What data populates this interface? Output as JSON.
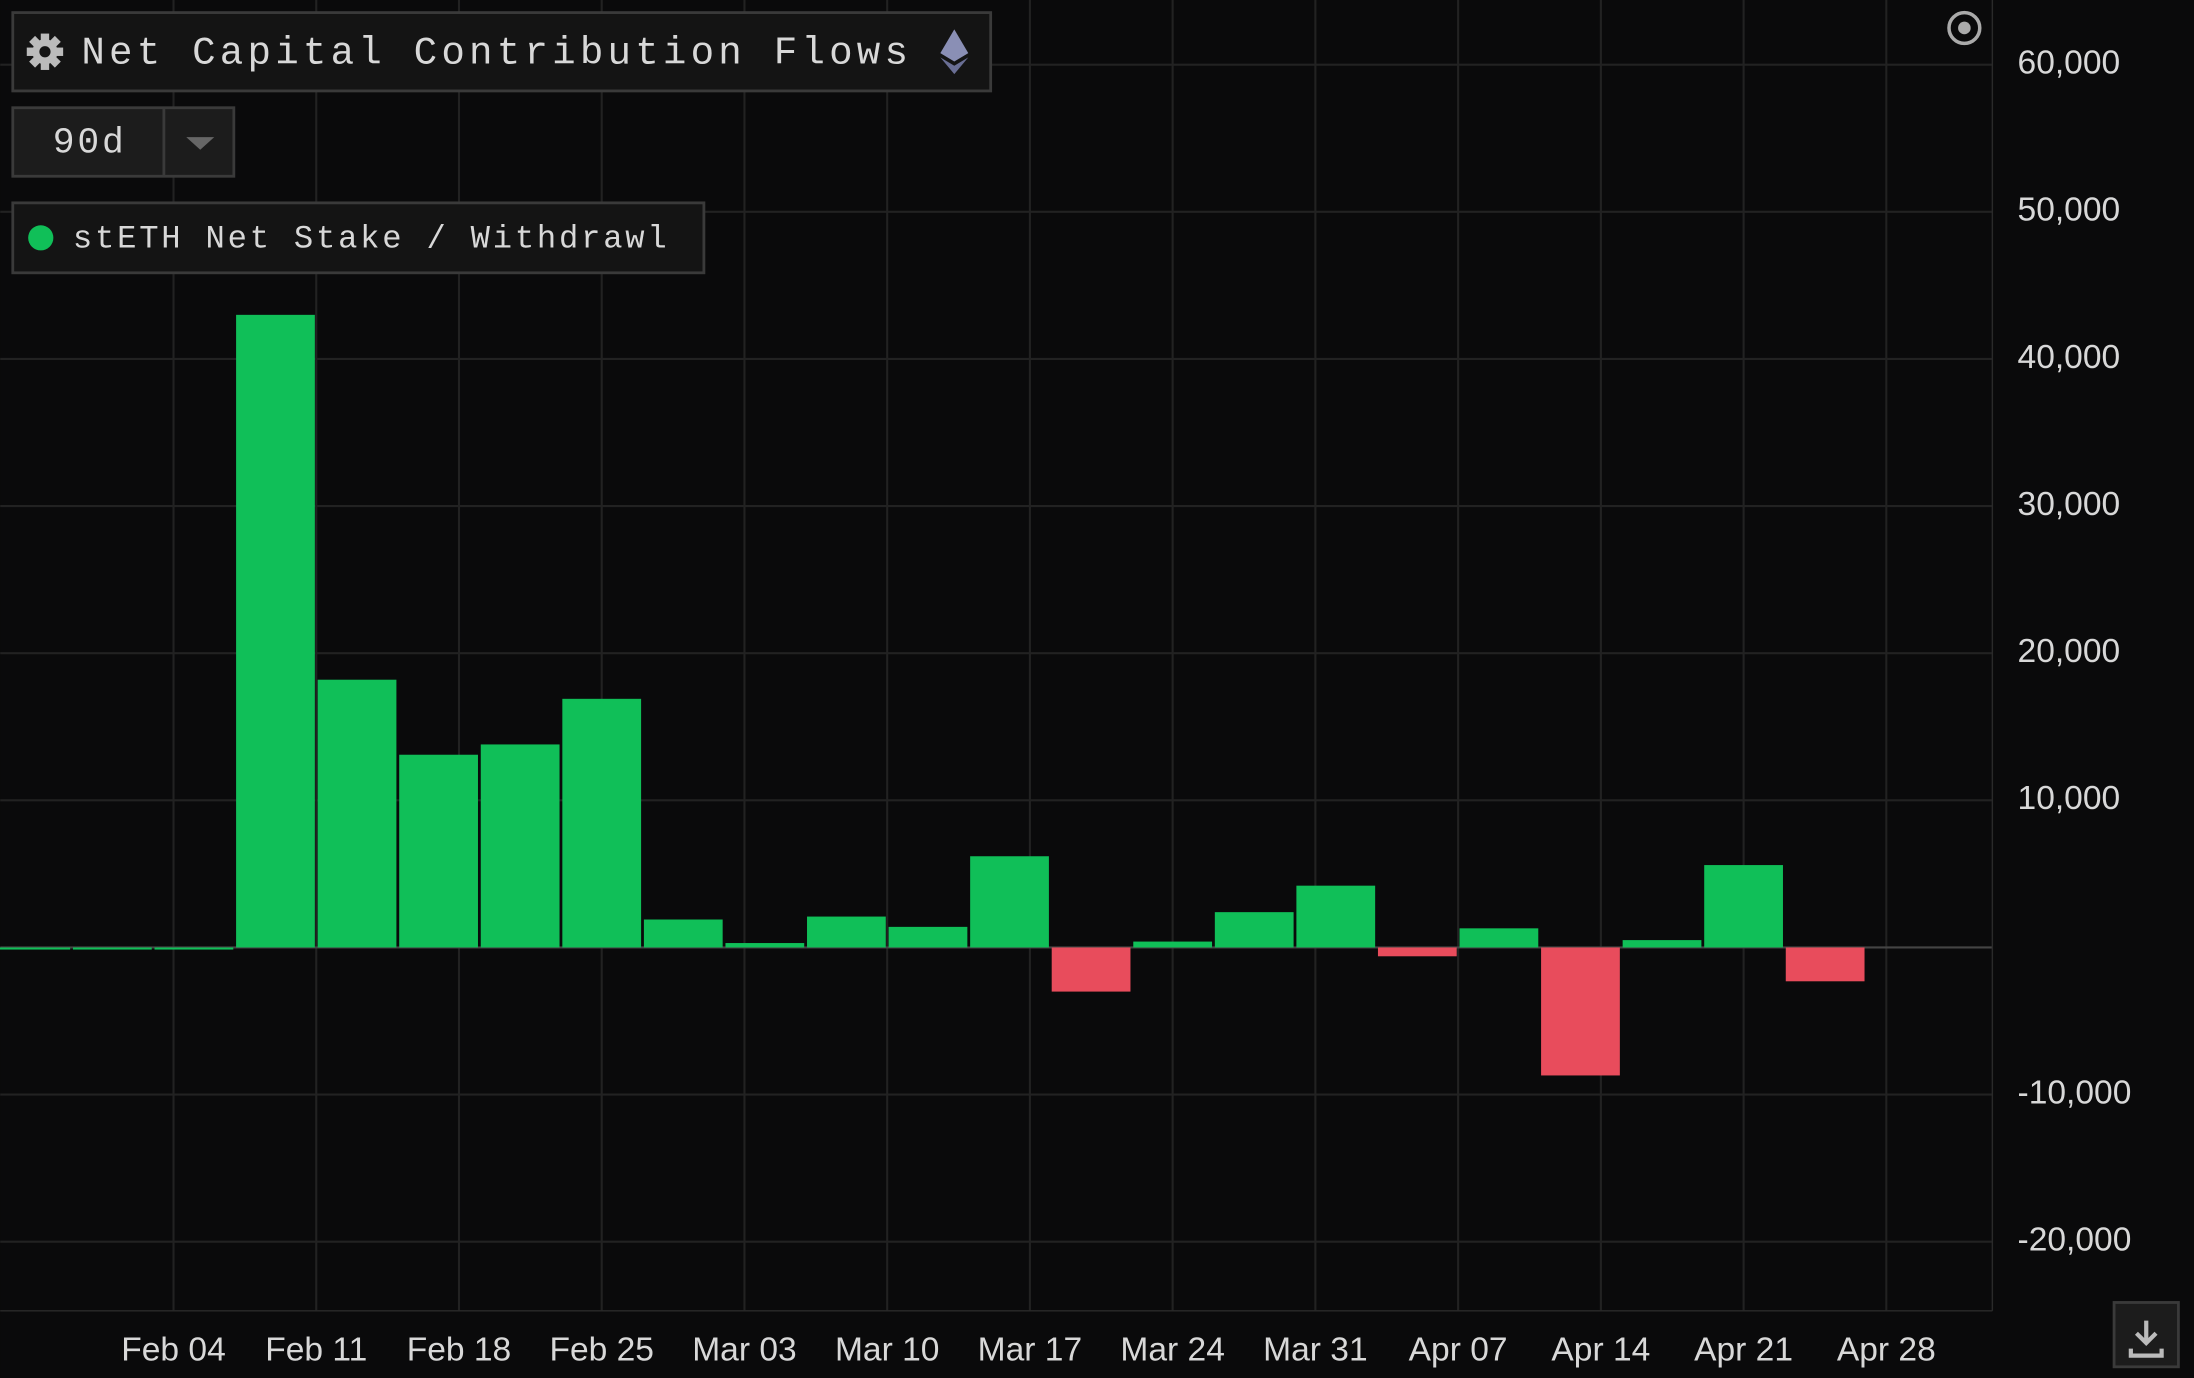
{
  "chart_data": {
    "type": "bar",
    "title": "Net Capital Contribution Flows",
    "range_selector": "90d",
    "series": [
      {
        "name": "stETH Net Stake / Withdrawl",
        "color": "#10bf58",
        "negative_color": "#e84c5c",
        "x": [
          -7,
          -3,
          1,
          5,
          9,
          13,
          17,
          21,
          25,
          29,
          33,
          37,
          41,
          45,
          49,
          53,
          57,
          61,
          65,
          69,
          73,
          77,
          81
        ],
        "values": [
          0,
          0,
          0,
          43000,
          18200,
          13100,
          13800,
          16900,
          1900,
          300,
          2100,
          1400,
          6200,
          -3000,
          400,
          2400,
          4200,
          -600,
          1300,
          -8700,
          500,
          5600,
          -2300
        ]
      }
    ],
    "bar_width_days": 4,
    "xlim": [
      -8.5,
      89.2
    ],
    "xticks": [
      {
        "value": 0,
        "label": "Feb 04"
      },
      {
        "value": 7,
        "label": "Feb 11"
      },
      {
        "value": 14,
        "label": "Feb 18"
      },
      {
        "value": 21,
        "label": "Feb 25"
      },
      {
        "value": 28,
        "label": "Mar 03"
      },
      {
        "value": 35,
        "label": "Mar 10"
      },
      {
        "value": 42,
        "label": "Mar 17"
      },
      {
        "value": 49,
        "label": "Mar 24"
      },
      {
        "value": 56,
        "label": "Mar 31"
      },
      {
        "value": 63,
        "label": "Apr 07"
      },
      {
        "value": 70,
        "label": "Apr 14"
      },
      {
        "value": 77,
        "label": "Apr 21"
      },
      {
        "value": 84,
        "label": "Apr 28"
      }
    ],
    "ylim": [
      -24700,
      64400
    ],
    "yticks": [
      {
        "value": -20000,
        "label": "-20,000"
      },
      {
        "value": -10000,
        "label": "-10,000"
      },
      {
        "value": 10000,
        "label": "10,000"
      },
      {
        "value": 20000,
        "label": "20,000"
      },
      {
        "value": 30000,
        "label": "30,000"
      },
      {
        "value": 40000,
        "label": "40,000"
      },
      {
        "value": 50000,
        "label": "50,000"
      },
      {
        "value": 60000,
        "label": "60,000"
      }
    ],
    "grid": true
  }
}
